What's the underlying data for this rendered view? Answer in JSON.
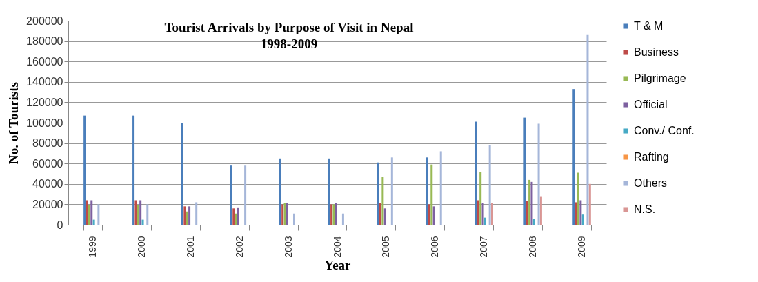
{
  "chart_data": {
    "type": "bar",
    "title": "Tourist Arrivals by Purpose of Visit in Nepal\n1998-2009",
    "xlabel": "Year",
    "ylabel": "No. of Tourists",
    "categories": [
      "1999",
      "2000",
      "2001",
      "2002",
      "2003",
      "2004",
      "2005",
      "2006",
      "2007",
      "2008",
      "2009"
    ],
    "series": [
      {
        "name": "T & M",
        "color": "#4a7ebb",
        "values": [
          107000,
          107000,
          100000,
          58000,
          65000,
          65000,
          61000,
          66000,
          101000,
          105000,
          133000
        ]
      },
      {
        "name": "Business",
        "color": "#be4b48",
        "values": [
          24000,
          24000,
          18000,
          16000,
          20000,
          20000,
          21000,
          20000,
          24000,
          23000,
          22000
        ]
      },
      {
        "name": "Pilgrimage",
        "color": "#98b954",
        "values": [
          19000,
          19000,
          13000,
          11000,
          21000,
          20000,
          47000,
          59000,
          52000,
          44000,
          51000
        ]
      },
      {
        "name": "Official",
        "color": "#7d60a0",
        "values": [
          24000,
          24000,
          18000,
          17000,
          21000,
          21000,
          16000,
          18000,
          21000,
          42000,
          24000
        ]
      },
      {
        "name": "Conv./ Conf.",
        "color": "#46aac5",
        "values": [
          5000,
          5000,
          null,
          null,
          null,
          null,
          null,
          null,
          7000,
          6000,
          10000
        ]
      },
      {
        "name": "Rafting",
        "color": "#f79646",
        "values": [
          null,
          null,
          null,
          null,
          null,
          null,
          null,
          null,
          null,
          null,
          null
        ]
      },
      {
        "name": "Others",
        "color": "#a5b6d9",
        "values": [
          20000,
          20000,
          22000,
          58000,
          11000,
          11000,
          66000,
          72000,
          78000,
          99000,
          186000
        ]
      },
      {
        "name": "N.S.",
        "color": "#d99694",
        "values": [
          null,
          null,
          null,
          null,
          null,
          null,
          null,
          null,
          21000,
          28000,
          40000
        ]
      }
    ],
    "ylim": [
      0,
      200000
    ],
    "yticks": [
      0,
      20000,
      40000,
      60000,
      80000,
      100000,
      120000,
      140000,
      160000,
      180000,
      200000
    ],
    "grid": "y",
    "legend": "right"
  }
}
